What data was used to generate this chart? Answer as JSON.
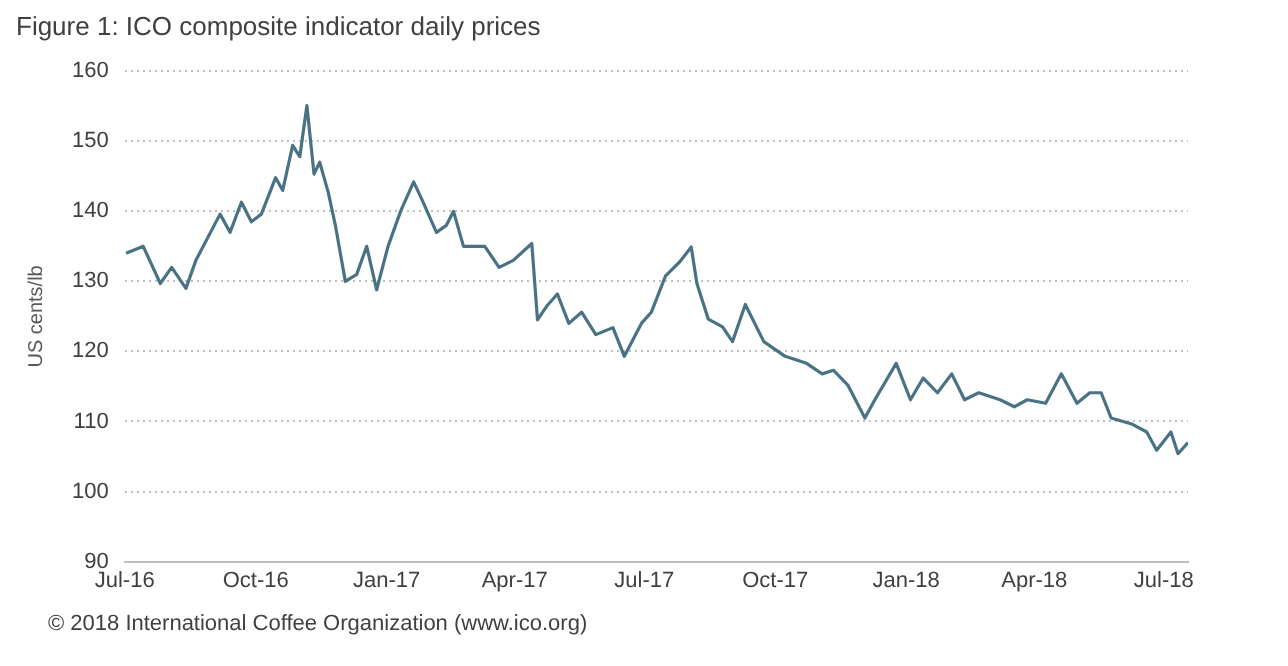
{
  "chart_data": {
    "type": "line",
    "title": "Figure 1: ICO composite indicator daily prices",
    "ylabel": "US cents/lb",
    "annotations": [
      "© 2018 International Coffee Organization (www.ico.org)"
    ],
    "x": [
      "2016-07-02",
      "2016-07-14",
      "2016-07-26",
      "2016-08-03",
      "2016-08-13",
      "2016-08-20",
      "2016-09-06",
      "2016-09-13",
      "2016-09-21",
      "2016-09-28",
      "2016-10-05",
      "2016-10-15",
      "2016-10-20",
      "2016-10-27",
      "2016-11-01",
      "2016-11-06",
      "2016-11-11",
      "2016-11-15",
      "2016-11-21",
      "2016-11-26",
      "2016-12-03",
      "2016-12-11",
      "2016-12-18",
      "2016-12-25",
      "2017-01-02",
      "2017-01-11",
      "2017-01-20",
      "2017-01-26",
      "2017-02-05",
      "2017-02-12",
      "2017-02-17",
      "2017-02-24",
      "2017-03-11",
      "2017-03-21",
      "2017-03-31",
      "2017-04-13",
      "2017-04-17",
      "2017-04-24",
      "2017-05-01",
      "2017-05-09",
      "2017-05-18",
      "2017-05-28",
      "2017-06-09",
      "2017-06-17",
      "2017-06-29",
      "2017-07-06",
      "2017-07-16",
      "2017-07-26",
      "2017-08-03",
      "2017-08-07",
      "2017-08-15",
      "2017-08-25",
      "2017-09-01",
      "2017-09-10",
      "2017-09-23",
      "2017-10-08",
      "2017-10-23",
      "2017-11-03",
      "2017-11-11",
      "2017-11-21",
      "2017-12-03",
      "2017-12-10",
      "2017-12-25",
      "2018-01-04",
      "2018-01-13",
      "2018-01-23",
      "2018-02-02",
      "2018-02-11",
      "2018-02-21",
      "2018-03-08",
      "2018-03-18",
      "2018-03-27",
      "2018-04-09",
      "2018-04-20",
      "2018-05-01",
      "2018-05-10",
      "2018-05-18",
      "2018-05-25",
      "2018-06-09",
      "2018-06-19",
      "2018-06-26",
      "2018-07-06",
      "2018-07-11",
      "2018-07-18"
    ],
    "series": [
      {
        "color": "#4a7285",
        "values": [
          134,
          135,
          129.7,
          132,
          129,
          133,
          139.6,
          137,
          141.3,
          138.5,
          139.6,
          144.8,
          143,
          149.4,
          147.8,
          155.1,
          145.3,
          147,
          142.7,
          138,
          130,
          131,
          135,
          128.8,
          135,
          140.1,
          144.2,
          141.6,
          137,
          138,
          140,
          135,
          135,
          132,
          133,
          135.4,
          124.5,
          126.6,
          128.2,
          124,
          125.6,
          122.4,
          123.4,
          119.3,
          124,
          125.6,
          130.8,
          132.8,
          134.9,
          129.7,
          124.6,
          123.5,
          121.4,
          126.7,
          121.4,
          119.3,
          118.3,
          116.8,
          117.3,
          115.2,
          110.5,
          113.1,
          118.3,
          113.1,
          116.2,
          114.1,
          116.8,
          113.1,
          114.1,
          113.1,
          112.1,
          113.1,
          112.6,
          116.8,
          112.6,
          114.1,
          114.1,
          110.5,
          109.6,
          108.5,
          105.9,
          108.5,
          105.4,
          107
        ]
      }
    ],
    "xlim": [
      "2016-07-01",
      "2018-07-18"
    ],
    "xticks": [
      {
        "value": "2016-07-01",
        "label": "Jul-16"
      },
      {
        "value": "2016-10-01",
        "label": "Oct-16"
      },
      {
        "value": "2017-01-01",
        "label": "Jan-17"
      },
      {
        "value": "2017-04-01",
        "label": "Apr-17"
      },
      {
        "value": "2017-07-01",
        "label": "Jul-17"
      },
      {
        "value": "2017-10-01",
        "label": "Oct-17"
      },
      {
        "value": "2018-01-01",
        "label": "Jan-18"
      },
      {
        "value": "2018-04-01",
        "label": "Apr-18"
      },
      {
        "value": "2018-07-01",
        "label": "Jul-18"
      }
    ],
    "ylim": [
      90,
      160
    ],
    "yticks": [
      90,
      100,
      110,
      120,
      130,
      140,
      150,
      160
    ],
    "grid": "y",
    "legend": false,
    "marker": "none",
    "line_style": "solid"
  }
}
